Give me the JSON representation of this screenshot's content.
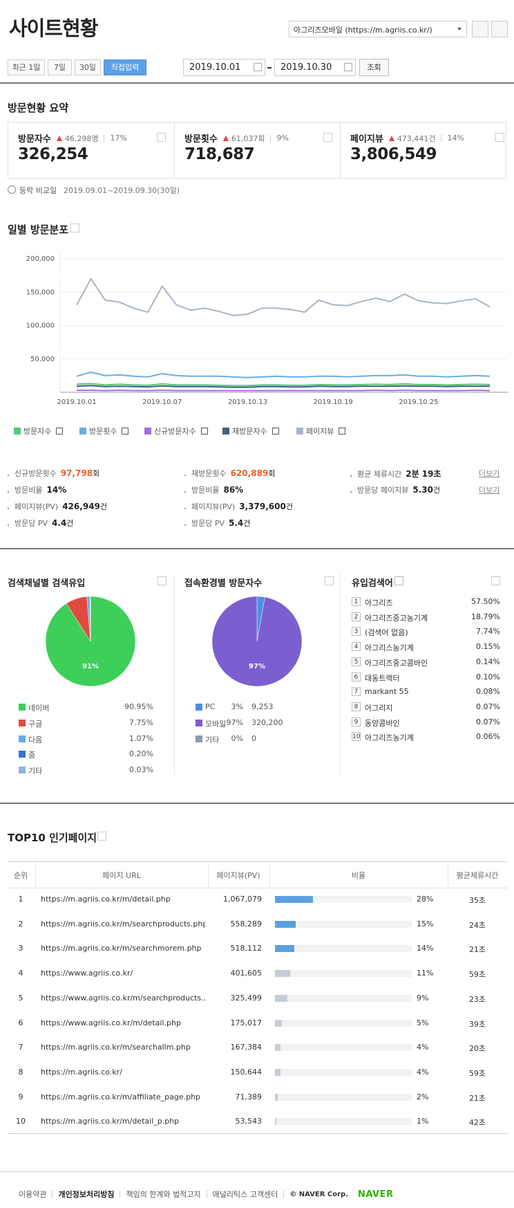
{
  "header": {
    "title": "사이트현황",
    "site_select": "아그리즈모바일 (https://m.agriis.co.kr/)"
  },
  "filter": {
    "tabs": [
      "최근 1일",
      "7일",
      "30일",
      "직접입력"
    ],
    "start": "2019.10.01",
    "end": "2019.10.30",
    "search": "조회"
  },
  "summary": {
    "title": "방문현황 요약",
    "cards": [
      {
        "label": "방문자수",
        "change": "46,298명",
        "rate": "17%",
        "value": "326,254"
      },
      {
        "label": "방문횟수",
        "change": "61,037회",
        "rate": "9%",
        "value": "718,687"
      },
      {
        "label": "페이지뷰",
        "change": "473,441건",
        "rate": "14%",
        "value": "3,806,549"
      }
    ],
    "compare_label": "등락 비교일",
    "compare_range": "2019.09.01~2019.09.30(30일)"
  },
  "chart_data": [
    {
      "type": "line",
      "title": "일별 방문분포",
      "categories": [
        "2019.10.01",
        null,
        null,
        null,
        null,
        null,
        "2019.10.07",
        null,
        null,
        null,
        null,
        null,
        "2019.10.13",
        null,
        null,
        null,
        null,
        null,
        "2019.10.19",
        null,
        null,
        null,
        null,
        null,
        "2019.10.25",
        null,
        null,
        null,
        null,
        null
      ],
      "ylim": [
        0,
        200000
      ],
      "yticks": [
        {
          "value": 50000,
          "label": "50,000"
        },
        {
          "value": 100000,
          "label": "100,000"
        },
        {
          "value": 150000,
          "label": "150,000"
        },
        {
          "value": 200000,
          "label": "200,000"
        }
      ],
      "grid": true,
      "series": [
        {
          "name": "방문자수",
          "color": "#4cc97a",
          "values": [
            12000,
            13000,
            11000,
            12000,
            11000,
            10500,
            12500,
            11000,
            11000,
            11000,
            10500,
            10000,
            10000,
            11000,
            11000,
            10500,
            10500,
            11500,
            11000,
            11000,
            11500,
            12000,
            11500,
            12500,
            11500,
            11500,
            11000,
            11500,
            12000,
            11500
          ]
        },
        {
          "name": "방문횟수",
          "color": "#6aaee0",
          "values": [
            24000,
            30000,
            25000,
            26000,
            24000,
            23000,
            28000,
            25000,
            24000,
            24000,
            24000,
            23000,
            22000,
            23000,
            24000,
            23000,
            23000,
            24000,
            24000,
            23000,
            24000,
            25000,
            25000,
            26000,
            24000,
            24000,
            23000,
            24000,
            25000,
            24000
          ]
        },
        {
          "name": "신규방문자수",
          "color": "#a070e0",
          "values": [
            3000,
            3000,
            2500,
            3000,
            2500,
            2500,
            3000,
            2500,
            2500,
            2500,
            2500,
            2500,
            2500,
            2500,
            2500,
            2500,
            2500,
            2500,
            2500,
            2500,
            2500,
            3000,
            2500,
            3000,
            2500,
            2500,
            2500,
            2500,
            3000,
            2500
          ]
        },
        {
          "name": "재방문자수",
          "color": "#4a5a78",
          "values": [
            9000,
            10000,
            8500,
            9000,
            8500,
            8000,
            9500,
            8500,
            8500,
            8500,
            8000,
            7500,
            7500,
            8500,
            8500,
            8000,
            8000,
            9000,
            8500,
            8500,
            9000,
            9000,
            9000,
            9500,
            9000,
            9000,
            8500,
            9000,
            9000,
            9000
          ]
        },
        {
          "name": "페이지뷰",
          "color": "#aab4c4",
          "values": [
            131000,
            170000,
            138000,
            135000,
            126000,
            120000,
            159000,
            131000,
            123000,
            126000,
            121000,
            115000,
            117000,
            126000,
            126000,
            124000,
            120000,
            138000,
            131000,
            130000,
            136000,
            141000,
            136000,
            147000,
            137000,
            134000,
            133000,
            137000,
            140000,
            128000
          ]
        }
      ]
    },
    {
      "type": "pie",
      "title": "검색채널별 검색유입",
      "categories": [
        "네이버",
        "구글",
        "다음",
        "줌",
        "기타"
      ],
      "values": [
        90.95,
        7.75,
        1.07,
        0.2,
        0.03
      ],
      "value_labels": [
        "90.95%",
        "7.75%",
        "1.07%",
        "0.20%",
        "0.03%"
      ],
      "slice_labels": [
        "91%",
        null,
        null,
        null,
        null
      ],
      "colors": [
        "#3ecf5a",
        "#e04a3f",
        "#6aa8f0",
        "#3a6fd8",
        "#8ab4e8"
      ]
    },
    {
      "type": "pie",
      "title": "접속환경별 방문자수",
      "categories": [
        "PC",
        "모바일",
        "기타"
      ],
      "values": [
        9253,
        320200,
        0
      ],
      "value_labels": [
        "9,253",
        "320,200",
        "0"
      ],
      "percent_labels": [
        "3%",
        "97%",
        "0%"
      ],
      "slice_labels": [
        null,
        "97%",
        null
      ],
      "colors": [
        "#4a90e2",
        "#7b5fd0",
        "#8c9ab0"
      ]
    }
  ],
  "details": [
    [
      {
        "label": "신규방문횟수",
        "value": "97,798",
        "unit": "회",
        "color": "#e8602c"
      },
      {
        "label": "방문비율",
        "value": "14%"
      },
      {
        "label": "페이지뷰(PV)",
        "value": "426,949",
        "unit": "건"
      },
      {
        "label": "방문당 PV",
        "value": "4.4",
        "unit": "건"
      }
    ],
    [
      {
        "label": "재방문횟수",
        "value": "620,889",
        "unit": "회",
        "color": "#e8602c"
      },
      {
        "label": "방문비율",
        "value": "86%"
      },
      {
        "label": "페이지뷰(PV)",
        "value": "3,379,600",
        "unit": "건"
      },
      {
        "label": "방문당 PV",
        "value": "5.4",
        "unit": "건"
      }
    ],
    [
      {
        "label": "평균 체류시간",
        "value": "2분 19초",
        "more": "더보기"
      },
      {
        "label": "방문당 페이지뷰",
        "value": "5.30",
        "unit": "건",
        "more": "더보기"
      }
    ]
  ],
  "keywords": {
    "title": "유입검색어",
    "rows": [
      {
        "rank": 1,
        "term": "아그리즈",
        "share": "57.50%"
      },
      {
        "rank": 2,
        "term": "아그리즈중고농기계",
        "share": "18.79%"
      },
      {
        "rank": 3,
        "term": "(검색어 없음)",
        "share": "7.74%"
      },
      {
        "rank": 4,
        "term": "아그리스농기계",
        "share": "0.15%"
      },
      {
        "rank": 5,
        "term": "아그리즈중고콤바인",
        "share": "0.14%"
      },
      {
        "rank": 6,
        "term": "대동트랙터",
        "share": "0.10%"
      },
      {
        "rank": 7,
        "term": "markant 55",
        "share": "0.08%"
      },
      {
        "rank": 8,
        "term": "아그리지",
        "share": "0.07%"
      },
      {
        "rank": 9,
        "term": "동양콤바인",
        "share": "0.07%"
      },
      {
        "rank": 10,
        "term": "아그리즈농기계",
        "share": "0.06%"
      }
    ]
  },
  "top10": {
    "title": "TOP10 인기페이지",
    "headers": [
      "순위",
      "페이지 URL",
      "페이지뷰(PV)",
      "비율",
      "평균체류시간"
    ],
    "rows": [
      {
        "rank": 1,
        "url": "https://m.agriis.co.kr/m/detail.php",
        "pv": "1,067,079",
        "ratio": 28,
        "ratio_label": "28%",
        "time": "35초"
      },
      {
        "rank": 2,
        "url": "https://m.agriis.co.kr/m/searchproducts.php",
        "pv": "558,289",
        "ratio": 15,
        "ratio_label": "15%",
        "time": "24초"
      },
      {
        "rank": 3,
        "url": "https://m.agriis.co.kr/m/searchmorem.php",
        "pv": "518,112",
        "ratio": 14,
        "ratio_label": "14%",
        "time": "21초"
      },
      {
        "rank": 4,
        "url": "https://www.agriis.co.kr/",
        "pv": "401,605",
        "ratio": 11,
        "ratio_label": "11%",
        "time": "59초"
      },
      {
        "rank": 5,
        "url": "https://www.agriis.co.kr/m/searchproducts.…",
        "pv": "325,499",
        "ratio": 9,
        "ratio_label": "9%",
        "time": "23초"
      },
      {
        "rank": 6,
        "url": "https://www.agriis.co.kr/m/detail.php",
        "pv": "175,017",
        "ratio": 5,
        "ratio_label": "5%",
        "time": "39초"
      },
      {
        "rank": 7,
        "url": "https://m.agriis.co.kr/m/searchallm.php",
        "pv": "167,384",
        "ratio": 4,
        "ratio_label": "4%",
        "time": "20초"
      },
      {
        "rank": 8,
        "url": "https://m.agriis.co.kr/",
        "pv": "150,644",
        "ratio": 4,
        "ratio_label": "4%",
        "time": "59초"
      },
      {
        "rank": 9,
        "url": "https://m.agriis.co.kr/m/affiliate_page.php",
        "pv": "71,389",
        "ratio": 2,
        "ratio_label": "2%",
        "time": "21초"
      },
      {
        "rank": 10,
        "url": "https://m.agriis.co.kr/m/detail_p.php",
        "pv": "53,543",
        "ratio": 1,
        "ratio_label": "1%",
        "time": "42초"
      }
    ]
  },
  "footer": {
    "links": [
      "이용약관",
      "개인정보처리방침",
      "책임의 한계와 법적고지",
      "애널리틱스 고객센터"
    ],
    "copyright": "© NAVER Corp.",
    "logo": "NAVER"
  }
}
